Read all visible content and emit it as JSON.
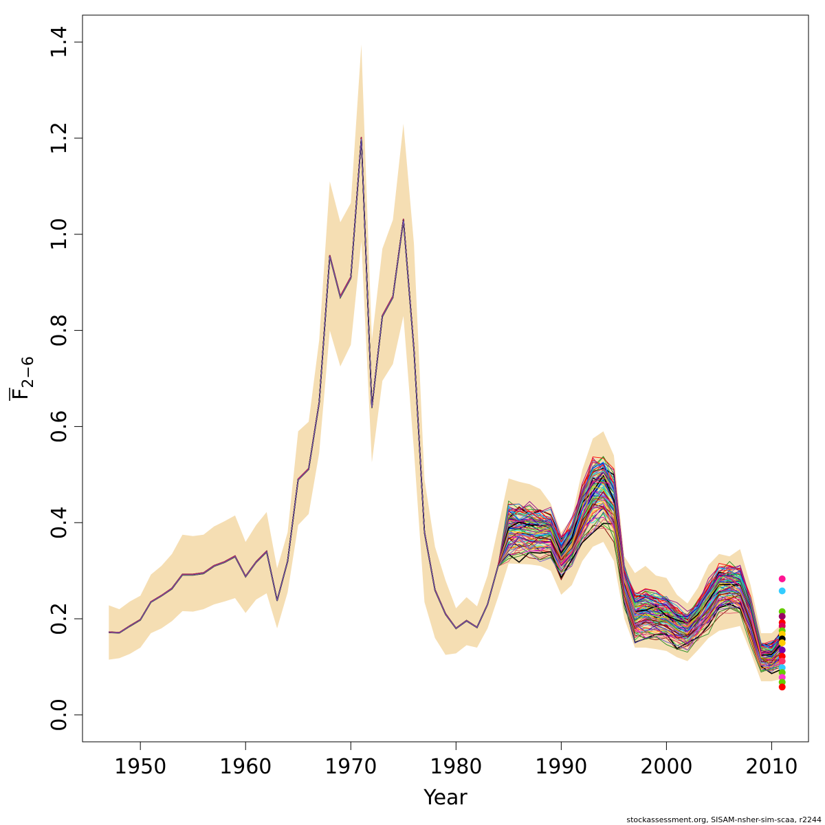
{
  "chart_data": {
    "type": "line",
    "xlabel": "Year",
    "ylabel_main": "F",
    "ylabel_sub": "2−6",
    "xlim": [
      1944.5,
      2013.5
    ],
    "ylim": [
      -0.056,
      1.456
    ],
    "x_ticks": [
      1950,
      1960,
      1970,
      1980,
      1990,
      2000,
      2010
    ],
    "y_ticks": [
      0.0,
      0.2,
      0.4,
      0.6,
      0.8,
      1.0,
      1.2,
      1.4
    ],
    "x_tick_labels": [
      "1950",
      "1960",
      "1970",
      "1980",
      "1990",
      "2000",
      "2010"
    ],
    "y_tick_labels": [
      "0.0",
      "0.2",
      "0.4",
      "0.6",
      "0.8",
      "1.0",
      "1.2",
      "1.4"
    ],
    "grid": false,
    "band_color": "#f5deb3",
    "years": [
      1947,
      1948,
      1949,
      1950,
      1951,
      1952,
      1953,
      1954,
      1955,
      1956,
      1957,
      1958,
      1959,
      1960,
      1961,
      1962,
      1963,
      1964,
      1965,
      1966,
      1967,
      1968,
      1969,
      1970,
      1971,
      1972,
      1973,
      1974,
      1975,
      1976,
      1977,
      1978,
      1979,
      1980,
      1981,
      1982,
      1983,
      1984,
      1985,
      1986,
      1987,
      1988,
      1989,
      1990,
      1991,
      1992,
      1993,
      1994,
      1995,
      1996,
      1997,
      1998,
      1999,
      2000,
      2001,
      2002,
      2003,
      2004,
      2005,
      2006,
      2007,
      2008,
      2009,
      2010,
      2011
    ],
    "central": [
      0.172,
      0.171,
      0.185,
      0.198,
      0.235,
      0.248,
      0.263,
      0.292,
      0.292,
      0.295,
      0.31,
      0.318,
      0.33,
      0.288,
      0.318,
      0.34,
      0.238,
      0.32,
      0.49,
      0.512,
      0.65,
      0.955,
      0.87,
      0.91,
      1.2,
      0.64,
      0.83,
      0.87,
      1.03,
      0.76,
      0.38,
      0.26,
      0.21,
      0.18,
      0.196,
      0.182,
      0.23,
      0.31,
      0.385,
      0.384,
      0.382,
      0.38,
      0.378,
      0.33,
      0.36,
      0.42,
      0.46,
      0.47,
      0.44,
      0.27,
      0.205,
      0.21,
      0.205,
      0.2,
      0.185,
      0.175,
      0.2,
      0.23,
      0.26,
      0.265,
      0.26,
      0.2,
      0.12,
      0.12,
      0.14
    ],
    "upper": [
      0.228,
      0.22,
      0.236,
      0.248,
      0.292,
      0.31,
      0.335,
      0.375,
      0.372,
      0.375,
      0.392,
      0.403,
      0.415,
      0.36,
      0.395,
      0.422,
      0.305,
      0.38,
      0.59,
      0.61,
      0.78,
      1.11,
      1.025,
      1.065,
      1.395,
      0.78,
      0.97,
      1.03,
      1.23,
      0.98,
      0.49,
      0.35,
      0.28,
      0.222,
      0.245,
      0.226,
      0.29,
      0.39,
      0.492,
      0.485,
      0.48,
      0.47,
      0.44,
      0.38,
      0.41,
      0.51,
      0.575,
      0.59,
      0.54,
      0.33,
      0.295,
      0.31,
      0.29,
      0.285,
      0.25,
      0.232,
      0.265,
      0.312,
      0.335,
      0.33,
      0.345,
      0.27,
      0.17,
      0.17,
      0.19
    ],
    "lower": [
      0.115,
      0.118,
      0.127,
      0.14,
      0.17,
      0.18,
      0.195,
      0.216,
      0.215,
      0.22,
      0.23,
      0.236,
      0.243,
      0.212,
      0.24,
      0.253,
      0.18,
      0.255,
      0.395,
      0.418,
      0.545,
      0.8,
      0.725,
      0.77,
      0.985,
      0.525,
      0.695,
      0.73,
      0.83,
      0.55,
      0.235,
      0.16,
      0.125,
      0.128,
      0.145,
      0.14,
      0.18,
      0.245,
      0.315,
      0.314,
      0.313,
      0.31,
      0.3,
      0.25,
      0.27,
      0.32,
      0.35,
      0.36,
      0.32,
      0.2,
      0.14,
      0.14,
      0.137,
      0.133,
      0.12,
      0.112,
      0.135,
      0.16,
      0.175,
      0.18,
      0.185,
      0.13,
      0.07,
      0.07,
      0.075
    ],
    "series_colors": [
      "#000000",
      "#df536b",
      "#61d04f",
      "#2297e6",
      "#28e2e5",
      "#cd0bbc",
      "#f5c710",
      "#9e9e9e",
      "#ff0000",
      "#8b008b",
      "#0000cd",
      "#ff1493",
      "#32cd32",
      "#ffa500",
      "#4b0082",
      "#00bfff",
      "#dc143c",
      "#228b22",
      "#800000",
      "#6a5acd"
    ],
    "n_series": 100,
    "endpoint_points": [
      {
        "year": 2011,
        "value": 0.283,
        "color": "#ff1493"
      },
      {
        "year": 2011,
        "value": 0.258,
        "color": "#33ccff"
      },
      {
        "year": 2011,
        "value": 0.215,
        "color": "#66cc00"
      },
      {
        "year": 2011,
        "value": 0.205,
        "color": "#990066"
      },
      {
        "year": 2011,
        "value": 0.192,
        "color": "#ff0000"
      },
      {
        "year": 2011,
        "value": 0.185,
        "color": "#dd0055"
      },
      {
        "year": 2011,
        "value": 0.175,
        "color": "#66cc00"
      },
      {
        "year": 2011,
        "value": 0.168,
        "color": "#ffcc00"
      },
      {
        "year": 2011,
        "value": 0.158,
        "color": "#000000"
      },
      {
        "year": 2011,
        "value": 0.15,
        "color": "#ffcc00"
      },
      {
        "year": 2011,
        "value": 0.135,
        "color": "#7700aa"
      },
      {
        "year": 2011,
        "value": 0.122,
        "color": "#ff0000"
      },
      {
        "year": 2011,
        "value": 0.112,
        "color": "#ff3366"
      },
      {
        "year": 2011,
        "value": 0.098,
        "color": "#33ccff"
      },
      {
        "year": 2011,
        "value": 0.088,
        "color": "#66cc00"
      },
      {
        "year": 2011,
        "value": 0.078,
        "color": "#ff33cc"
      },
      {
        "year": 2011,
        "value": 0.068,
        "color": "#66cc00"
      },
      {
        "year": 2011,
        "value": 0.058,
        "color": "#ff0000"
      }
    ]
  },
  "footer": {
    "credit": "stockassessment.org, SISAM-nsher-sim-scaa, r2244"
  }
}
